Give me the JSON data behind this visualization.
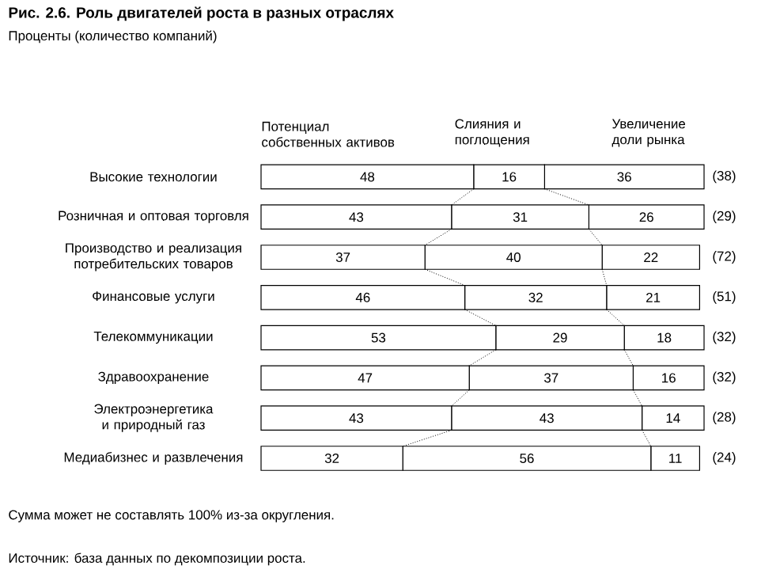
{
  "chart_data": {
    "type": "bar",
    "orientation": "horizontal",
    "stacked": true,
    "title": "Рис. 2.6. Роль двигателей роста в разных отраслях",
    "subtitle": "Проценты (количество компаний)",
    "categories": [
      "Высокие технологии",
      "Розничная и оптовая торговля",
      "Производство и реализация потребительских товаров",
      "Финансовые услуги",
      "Телекоммуникации",
      "Здравоохранение",
      "Электроэнергетика и природный газ",
      "Медиабизнес и развлечения"
    ],
    "series": [
      {
        "name": "Потенциал собственных активов",
        "color": "#ffffff",
        "values": [
          48,
          43,
          37,
          46,
          53,
          47,
          43,
          32
        ]
      },
      {
        "name": "Слияния и поглощения",
        "color": "#ffffff",
        "values": [
          16,
          31,
          40,
          32,
          29,
          37,
          43,
          56
        ]
      },
      {
        "name": "Увеличение доли рынка",
        "color": "#ffffff",
        "values": [
          36,
          26,
          22,
          21,
          18,
          16,
          14,
          11
        ]
      }
    ],
    "tick_labels": "y",
    "data_labels": true,
    "annotations": [
      "(38)",
      "(29)",
      "(72)",
      "(51)",
      "(32)",
      "(32)",
      "(28)",
      "(24)",
      "Сумма может не составлять 100% из-за округления.",
      "Источник: база данных по декомпозиции роста."
    ]
  }
}
